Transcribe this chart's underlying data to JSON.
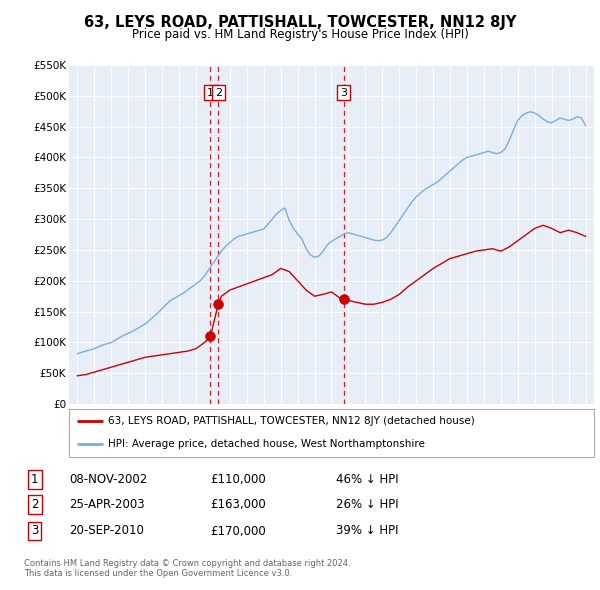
{
  "title": "63, LEYS ROAD, PATTISHALL, TOWCESTER, NN12 8JY",
  "subtitle": "Price paid vs. HM Land Registry's House Price Index (HPI)",
  "background_color": "#ffffff",
  "plot_background": "#e8eef8",
  "grid_color": "#ffffff",
  "ylim": [
    0,
    550000
  ],
  "yticks": [
    0,
    50000,
    100000,
    150000,
    200000,
    250000,
    300000,
    350000,
    400000,
    450000,
    500000,
    550000
  ],
  "ytick_labels": [
    "£0",
    "£50K",
    "£100K",
    "£150K",
    "£200K",
    "£250K",
    "£300K",
    "£350K",
    "£400K",
    "£450K",
    "£500K",
    "£550K"
  ],
  "legend_entry1": "63, LEYS ROAD, PATTISHALL, TOWCESTER, NN12 8JY (detached house)",
  "legend_entry2": "HPI: Average price, detached house, West Northamptonshire",
  "sale_label1": "1",
  "sale_date1": "08-NOV-2002",
  "sale_price1": "£110,000",
  "sale_pct1": "46% ↓ HPI",
  "sale_label2": "2",
  "sale_date2": "25-APR-2003",
  "sale_price2": "£163,000",
  "sale_pct2": "26% ↓ HPI",
  "sale_label3": "3",
  "sale_date3": "20-SEP-2010",
  "sale_price3": "£170,000",
  "sale_pct3": "39% ↓ HPI",
  "footer1": "Contains HM Land Registry data © Crown copyright and database right 2024.",
  "footer2": "This data is licensed under the Open Government Licence v3.0.",
  "sale_color": "#cc0000",
  "hpi_color": "#7aade0",
  "dashed_line_color": "#cc0000",
  "hpi_x": [
    1995.0,
    1995.25,
    1995.5,
    1995.75,
    1996.0,
    1996.25,
    1996.5,
    1996.75,
    1997.0,
    1997.25,
    1997.5,
    1997.75,
    1998.0,
    1998.25,
    1998.5,
    1998.75,
    1999.0,
    1999.25,
    1999.5,
    1999.75,
    2000.0,
    2000.25,
    2000.5,
    2000.75,
    2001.0,
    2001.25,
    2001.5,
    2001.75,
    2002.0,
    2002.25,
    2002.5,
    2002.75,
    2003.0,
    2003.25,
    2003.5,
    2003.75,
    2004.0,
    2004.25,
    2004.5,
    2004.75,
    2005.0,
    2005.25,
    2005.5,
    2005.75,
    2006.0,
    2006.25,
    2006.5,
    2006.75,
    2007.0,
    2007.25,
    2007.5,
    2007.75,
    2008.0,
    2008.25,
    2008.5,
    2008.75,
    2009.0,
    2009.25,
    2009.5,
    2009.75,
    2010.0,
    2010.25,
    2010.5,
    2010.75,
    2011.0,
    2011.25,
    2011.5,
    2011.75,
    2012.0,
    2012.25,
    2012.5,
    2012.75,
    2013.0,
    2013.25,
    2013.5,
    2013.75,
    2014.0,
    2014.25,
    2014.5,
    2014.75,
    2015.0,
    2015.25,
    2015.5,
    2015.75,
    2016.0,
    2016.25,
    2016.5,
    2016.75,
    2017.0,
    2017.25,
    2017.5,
    2017.75,
    2018.0,
    2018.25,
    2018.5,
    2018.75,
    2019.0,
    2019.25,
    2019.5,
    2019.75,
    2020.0,
    2020.25,
    2020.5,
    2020.75,
    2021.0,
    2021.25,
    2021.5,
    2021.75,
    2022.0,
    2022.25,
    2022.5,
    2022.75,
    2023.0,
    2023.25,
    2023.5,
    2023.75,
    2024.0,
    2024.25,
    2024.5,
    2024.75,
    2025.0
  ],
  "hpi_y": [
    82000,
    84000,
    86000,
    88000,
    90000,
    93000,
    96000,
    98000,
    100000,
    104000,
    108000,
    112000,
    115000,
    118000,
    122000,
    126000,
    130000,
    136000,
    142000,
    148000,
    155000,
    162000,
    168000,
    172000,
    176000,
    180000,
    185000,
    190000,
    195000,
    200000,
    208000,
    218000,
    228000,
    238000,
    248000,
    256000,
    262000,
    268000,
    272000,
    274000,
    276000,
    278000,
    280000,
    282000,
    284000,
    292000,
    300000,
    308000,
    314000,
    318000,
    298000,
    285000,
    276000,
    268000,
    252000,
    242000,
    238000,
    240000,
    248000,
    258000,
    264000,
    268000,
    272000,
    276000,
    278000,
    276000,
    274000,
    272000,
    270000,
    268000,
    266000,
    265000,
    266000,
    270000,
    278000,
    288000,
    298000,
    308000,
    318000,
    328000,
    336000,
    342000,
    348000,
    352000,
    356000,
    360000,
    366000,
    372000,
    378000,
    384000,
    390000,
    396000,
    400000,
    402000,
    404000,
    406000,
    408000,
    410000,
    408000,
    406000,
    408000,
    414000,
    428000,
    445000,
    460000,
    468000,
    472000,
    474000,
    472000,
    468000,
    462000,
    458000,
    456000,
    460000,
    464000,
    462000,
    460000,
    462000,
    466000,
    464000,
    452000
  ],
  "red_x": [
    1995.0,
    1995.5,
    1996.0,
    1996.5,
    1997.0,
    1997.5,
    1998.0,
    1998.5,
    1999.0,
    1999.5,
    2000.0,
    2000.5,
    2001.0,
    2001.5,
    2002.0,
    2002.5,
    2002.85,
    2003.32,
    2003.5,
    2004.0,
    2004.5,
    2005.0,
    2005.5,
    2006.0,
    2006.5,
    2007.0,
    2007.5,
    2008.0,
    2008.5,
    2009.0,
    2009.5,
    2010.0,
    2010.5,
    2010.72,
    2011.0,
    2011.5,
    2012.0,
    2012.5,
    2013.0,
    2013.5,
    2014.0,
    2014.5,
    2015.0,
    2015.5,
    2016.0,
    2016.5,
    2017.0,
    2017.5,
    2018.0,
    2018.5,
    2019.0,
    2019.5,
    2020.0,
    2020.5,
    2021.0,
    2021.5,
    2022.0,
    2022.5,
    2023.0,
    2023.5,
    2024.0,
    2024.5,
    2025.0
  ],
  "red_y": [
    46000,
    48000,
    52000,
    56000,
    60000,
    64000,
    68000,
    72000,
    76000,
    78000,
    80000,
    82000,
    84000,
    86000,
    90000,
    100000,
    110000,
    163000,
    175000,
    185000,
    190000,
    195000,
    200000,
    205000,
    210000,
    220000,
    215000,
    200000,
    185000,
    175000,
    178000,
    182000,
    172000,
    170000,
    168000,
    165000,
    162000,
    162000,
    165000,
    170000,
    178000,
    190000,
    200000,
    210000,
    220000,
    228000,
    236000,
    240000,
    244000,
    248000,
    250000,
    252000,
    248000,
    255000,
    265000,
    275000,
    285000,
    290000,
    285000,
    278000,
    282000,
    278000,
    272000
  ],
  "sale1_x": 2002.85,
  "sale1_y": 110000,
  "sale2_x": 2003.32,
  "sale2_y": 163000,
  "sale3_x": 2010.72,
  "sale3_y": 170000,
  "vline1_x": 2002.85,
  "vline2_x": 2003.32,
  "vline3_x": 2010.72,
  "xlim_left": 1994.5,
  "xlim_right": 2025.5
}
